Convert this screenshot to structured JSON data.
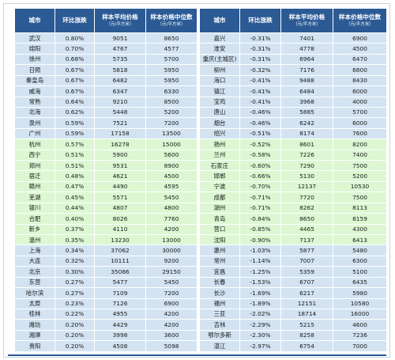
{
  "headers": {
    "city": "城市",
    "change": "环比涨跌",
    "avg": "样本平均价格",
    "avg_unit": "（元/平方米）",
    "median": "样本价格中位数",
    "median_unit": "（元/平方米）"
  },
  "rows": [
    {
      "group": "blue",
      "left": [
        "武汉",
        "0.80%",
        "9051",
        "8650"
      ],
      "right": [
        "嘉兴",
        "-0.31%",
        "7401",
        "6900"
      ]
    },
    {
      "group": "blue",
      "left": [
        "绵阳",
        "0.70%",
        "4767",
        "4577"
      ],
      "right": [
        "淮安",
        "-0.31%",
        "4778",
        "4500"
      ]
    },
    {
      "group": "blue",
      "left": [
        "徐州",
        "0.68%",
        "5735",
        "5700"
      ],
      "right": [
        "重庆(主城区)",
        "-0.31%",
        "6964",
        "6470"
      ]
    },
    {
      "group": "blue",
      "left": [
        "日照",
        "0.67%",
        "5818",
        "5950"
      ],
      "right": [
        "柳州",
        "-0.32%",
        "7176",
        "6800"
      ]
    },
    {
      "group": "blue",
      "left": [
        "秦皇岛",
        "0.67%",
        "6482",
        "5950"
      ],
      "right": [
        "海口",
        "-0.41%",
        "9488",
        "8430"
      ]
    },
    {
      "group": "blue",
      "left": [
        "威海",
        "0.67%",
        "6347",
        "6330"
      ],
      "right": [
        "镇江",
        "-0.41%",
        "6484",
        "6000"
      ]
    },
    {
      "group": "blue",
      "left": [
        "常熟",
        "0.64%",
        "9210",
        "8500"
      ],
      "right": [
        "宝鸡",
        "-0.41%",
        "3968",
        "4000"
      ]
    },
    {
      "group": "blue",
      "left": [
        "北海",
        "0.62%",
        "5448",
        "5200"
      ],
      "right": [
        "唐山",
        "-0.46%",
        "5885",
        "5700"
      ]
    },
    {
      "group": "blue",
      "left": [
        "泉州",
        "0.59%",
        "7521",
        "7200"
      ],
      "right": [
        "烟台",
        "-0.46%",
        "6242",
        "6000"
      ]
    },
    {
      "group": "blue",
      "left": [
        "广州",
        "0.59%",
        "17158",
        "13500"
      ],
      "right": [
        "绍兴",
        "-0.51%",
        "8174",
        "7600"
      ]
    },
    {
      "group": "green",
      "left": [
        "杭州",
        "0.57%",
        "16278",
        "15000"
      ],
      "right": [
        "扬州",
        "-0.52%",
        "8601",
        "8200"
      ]
    },
    {
      "group": "green",
      "left": [
        "西宁",
        "0.51%",
        "5900",
        "5600"
      ],
      "right": [
        "兰州",
        "-0.58%",
        "7226",
        "7400"
      ]
    },
    {
      "group": "green",
      "left": [
        "郑州",
        "0.51%",
        "9531",
        "8900"
      ],
      "right": [
        "石家庄",
        "-0.60%",
        "7290",
        "7500"
      ]
    },
    {
      "group": "green",
      "left": [
        "宿迁",
        "0.48%",
        "4621",
        "4500"
      ],
      "right": [
        "邯郸",
        "-0.66%",
        "5130",
        "5200"
      ]
    },
    {
      "group": "green",
      "left": [
        "赣州",
        "0.47%",
        "4490",
        "4595"
      ],
      "right": [
        "宁波",
        "-0.70%",
        "12137",
        "10530"
      ]
    },
    {
      "group": "green",
      "left": [
        "芜湖",
        "0.45%",
        "5571",
        "5450"
      ],
      "right": [
        "成都",
        "-0.71%",
        "7720",
        "7500"
      ]
    },
    {
      "group": "green",
      "left": [
        "银川",
        "0.44%",
        "4807",
        "4800"
      ],
      "right": [
        "湖州",
        "-0.71%",
        "8262",
        "8113"
      ]
    },
    {
      "group": "green",
      "left": [
        "合肥",
        "0.40%",
        "8026",
        "7760"
      ],
      "right": [
        "青岛",
        "-0.84%",
        "8650",
        "8159"
      ]
    },
    {
      "group": "green",
      "left": [
        "新乡",
        "0.37%",
        "4110",
        "4200"
      ],
      "right": [
        "营口",
        "-0.85%",
        "4465",
        "4300"
      ]
    },
    {
      "group": "green",
      "left": [
        "温州",
        "0.35%",
        "13230",
        "13000"
      ],
      "right": [
        "沈阳",
        "-0.90%",
        "7137",
        "6413"
      ]
    },
    {
      "group": "blue",
      "left": [
        "上海",
        "0.34%",
        "37062",
        "30000"
      ],
      "right": [
        "惠州",
        "-1.03%",
        "5877",
        "5480"
      ]
    },
    {
      "group": "blue",
      "left": [
        "大连",
        "0.32%",
        "10111",
        "9200"
      ],
      "right": [
        "常州",
        "-1.14%",
        "7007",
        "6300"
      ]
    },
    {
      "group": "blue",
      "left": [
        "北京",
        "0.30%",
        "35086",
        "29150"
      ],
      "right": [
        "宜昌",
        "-1.25%",
        "5359",
        "5100"
      ]
    },
    {
      "group": "blue",
      "left": [
        "东营",
        "0.27%",
        "5477",
        "5450"
      ],
      "right": [
        "长春",
        "-1.53%",
        "6707",
        "6435"
      ]
    },
    {
      "group": "blue",
      "left": [
        "哈尔滨",
        "0.27%",
        "7109",
        "7200"
      ],
      "right": [
        "长沙",
        "-1.69%",
        "6217",
        "5980"
      ]
    },
    {
      "group": "blue",
      "left": [
        "太原",
        "0.23%",
        "7126",
        "6900"
      ],
      "right": [
        "福州",
        "-1.89%",
        "12151",
        "10580"
      ]
    },
    {
      "group": "blue",
      "left": [
        "桂林",
        "0.22%",
        "4955",
        "4200"
      ],
      "right": [
        "三亚",
        "-2.02%",
        "18714",
        "16000"
      ]
    },
    {
      "group": "blue",
      "left": [
        "潍坊",
        "0.20%",
        "4429",
        "4200"
      ],
      "right": [
        "吉林",
        "-2.29%",
        "5215",
        "4600"
      ]
    },
    {
      "group": "blue",
      "left": [
        "湘潭",
        "0.20%",
        "3998",
        "3600"
      ],
      "right": [
        "鄂尔多斯",
        "-2.30%",
        "8258",
        "7236"
      ]
    },
    {
      "group": "blue",
      "left": [
        "贵阳",
        "0.20%",
        "4508",
        "5098"
      ],
      "right": [
        "湛江",
        "-2.97%",
        "6754",
        "7000"
      ]
    }
  ]
}
